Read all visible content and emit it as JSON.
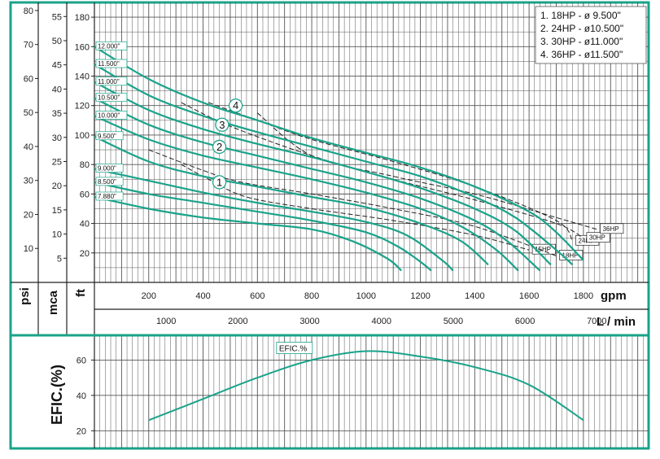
{
  "colors": {
    "frame": "#1aa38a",
    "curve": "#1aa38a",
    "grid": "#555555",
    "dash": "#222222",
    "text": "#111111"
  },
  "legend": [
    "1. 18HP - ø  9.500\"",
    "2. 24HP - ø10.500\"",
    "3. 30HP - ø11.000\"",
    "4. 36HP - ø11.500\""
  ],
  "chart_data": [
    {
      "type": "line",
      "title": "",
      "axes": {
        "x_primary": {
          "label": "gpm",
          "ticks": [
            200,
            400,
            600,
            800,
            1000,
            1200,
            1400,
            1600,
            1800
          ],
          "range": [
            0,
            2040
          ]
        },
        "x_secondary": {
          "label": "L / min",
          "ticks": [
            1000,
            2000,
            3000,
            4000,
            5000,
            6000,
            7000
          ]
        },
        "y_ft": {
          "label": "ft",
          "ticks": [
            20,
            40,
            60,
            80,
            100,
            120,
            140,
            160,
            180
          ],
          "range": [
            0,
            190
          ]
        },
        "y_mca": {
          "label": "mca",
          "ticks": [
            5,
            10,
            15,
            20,
            25,
            30,
            35,
            40,
            45,
            50,
            55
          ]
        },
        "y_psi": {
          "label": "psi",
          "ticks": [
            10,
            20,
            30,
            40,
            50,
            60,
            70,
            80
          ]
        }
      },
      "grid": true,
      "legend_position": "top-right",
      "series": [
        {
          "name": "12.000\"",
          "points": [
            [
              0,
              160
            ],
            [
              200,
              138
            ],
            [
              400,
              122
            ],
            [
              600,
              110
            ],
            [
              800,
              98
            ],
            [
              1000,
              88
            ],
            [
              1200,
              78
            ],
            [
              1400,
              65
            ],
            [
              1600,
              48
            ],
            [
              1700,
              34
            ],
            [
              1800,
              15
            ]
          ]
        },
        {
          "name": "11.500\"",
          "points": [
            [
              0,
              148
            ],
            [
              200,
              127
            ],
            [
              400,
              113
            ],
            [
              600,
              102
            ],
            [
              800,
              92
            ],
            [
              1000,
              82
            ],
            [
              1200,
              72
            ],
            [
              1400,
              58
            ],
            [
              1550,
              44
            ],
            [
              1700,
              22
            ],
            [
              1760,
              12
            ]
          ]
        },
        {
          "name": "11.000\"",
          "points": [
            [
              0,
              136
            ],
            [
              200,
              117
            ],
            [
              400,
              104
            ],
            [
              600,
              94
            ],
            [
              800,
              85
            ],
            [
              1000,
              75
            ],
            [
              1200,
              64
            ],
            [
              1400,
              50
            ],
            [
              1550,
              35
            ],
            [
              1680,
              12
            ]
          ]
        },
        {
          "name": "10.500\"",
          "points": [
            [
              0,
              125
            ],
            [
              200,
              107
            ],
            [
              400,
              95
            ],
            [
              600,
              86
            ],
            [
              800,
              77
            ],
            [
              1000,
              68
            ],
            [
              1200,
              57
            ],
            [
              1400,
              42
            ],
            [
              1520,
              28
            ],
            [
              1640,
              8
            ]
          ]
        },
        {
          "name": "10.000\"",
          "points": [
            [
              0,
              113
            ],
            [
              200,
              97
            ],
            [
              400,
              86
            ],
            [
              600,
              78
            ],
            [
              800,
              70
            ],
            [
              1000,
              61
            ],
            [
              1200,
              50
            ],
            [
              1350,
              38
            ],
            [
              1480,
              22
            ],
            [
              1560,
              8
            ]
          ]
        },
        {
          "name": "9.500\"",
          "points": [
            [
              0,
              99
            ],
            [
              200,
              82
            ],
            [
              400,
              72
            ],
            [
              600,
              65
            ],
            [
              800,
              58
            ],
            [
              1000,
              51
            ],
            [
              1200,
              40
            ],
            [
              1350,
              28
            ],
            [
              1450,
              12
            ]
          ]
        },
        {
          "name": "9.000\"",
          "points": [
            [
              0,
              77
            ],
            [
              200,
              69
            ],
            [
              400,
              61
            ],
            [
              600,
              54
            ],
            [
              800,
              48
            ],
            [
              1000,
              41
            ],
            [
              1150,
              32
            ],
            [
              1280,
              15
            ],
            [
              1320,
              8
            ]
          ]
        },
        {
          "name": "8.500\"",
          "points": [
            [
              0,
              68
            ],
            [
              200,
              60
            ],
            [
              400,
              54
            ],
            [
              600,
              48
            ],
            [
              800,
              42
            ],
            [
              1000,
              34
            ],
            [
              1120,
              24
            ],
            [
              1200,
              14
            ],
            [
              1240,
              8
            ]
          ]
        },
        {
          "name": "7.880\"",
          "points": [
            [
              0,
              58
            ],
            [
              200,
              50
            ],
            [
              400,
              44
            ],
            [
              600,
              40
            ],
            [
              800,
              36
            ],
            [
              950,
              28
            ],
            [
              1080,
              16
            ],
            [
              1130,
              8
            ]
          ]
        }
      ],
      "limit_lines": [
        {
          "name": "15HP",
          "points": [
            [
              320,
              80
            ],
            [
              420,
              70
            ],
            [
              560,
              58
            ],
            [
              800,
              50
            ],
            [
              1100,
              42
            ],
            [
              1400,
              32
            ],
            [
              1600,
              22
            ]
          ]
        },
        {
          "name": "18HP",
          "points": [
            [
              200,
              90
            ],
            [
              400,
              76
            ],
            [
              540,
              68
            ],
            [
              800,
              60
            ],
            [
              1100,
              50
            ],
            [
              1400,
              38
            ],
            [
              1700,
              18
            ]
          ]
        },
        {
          "name": "24HP",
          "points": [
            [
              420,
              122
            ],
            [
              600,
              110
            ],
            [
              800,
              97
            ],
            [
              1100,
              82
            ],
            [
              1400,
              65
            ],
            [
              1700,
              42
            ],
            [
              1760,
              28
            ]
          ]
        },
        {
          "name": "30HP",
          "points": [
            [
              320,
              122
            ],
            [
              500,
              106
            ],
            [
              800,
              86
            ],
            [
              1100,
              70
            ],
            [
              1400,
              56
            ],
            [
              1700,
              40
            ],
            [
              1800,
              30
            ]
          ]
        },
        {
          "name": "36HP",
          "points": [
            [
              600,
              115
            ],
            [
              800,
              86
            ],
            [
              1100,
              72
            ],
            [
              1400,
              60
            ],
            [
              1700,
              44
            ],
            [
              1850,
              36
            ]
          ]
        }
      ],
      "pump_markers": [
        {
          "label": "4",
          "x": 520,
          "y": 120
        },
        {
          "label": "3",
          "x": 470,
          "y": 107
        },
        {
          "label": "2",
          "x": 460,
          "y": 92
        },
        {
          "label": "1",
          "x": 460,
          "y": 68
        }
      ]
    },
    {
      "type": "line",
      "title": "",
      "axes": {
        "y": {
          "label": "EFIC.(%)",
          "ticks": [
            20,
            40,
            60
          ],
          "range": [
            10,
            74
          ]
        },
        "x": {
          "label": "gpm",
          "range": [
            0,
            2040
          ]
        }
      },
      "grid": true,
      "series": [
        {
          "name": "EFIC.%",
          "points": [
            [
              200,
              26
            ],
            [
              400,
              38
            ],
            [
              600,
              50
            ],
            [
              800,
              60
            ],
            [
              1000,
              65
            ],
            [
              1200,
              62
            ],
            [
              1400,
              56
            ],
            [
              1600,
              46
            ],
            [
              1800,
              26
            ]
          ]
        }
      ]
    }
  ]
}
